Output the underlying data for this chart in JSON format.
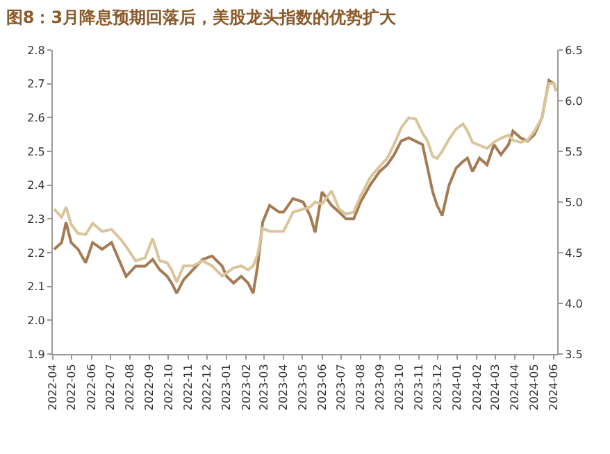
{
  "chart_data": {
    "type": "line",
    "title": "图8：3月降息预期回落后，美股龙头指数的优势扩大",
    "x": [
      "2022-04-03",
      "2022-04-15",
      "2022-04-22",
      "2022-04-30",
      "2022-05-11",
      "2022-05-23",
      "2022-06-03",
      "2022-06-18",
      "2022-07-03",
      "2022-07-19",
      "2022-07-26",
      "2022-08-10",
      "2022-08-25",
      "2022-09-06",
      "2022-09-17",
      "2022-09-29",
      "2022-10-06",
      "2022-10-14",
      "2022-10-25",
      "2022-11-09",
      "2022-11-24",
      "2022-12-09",
      "2022-12-25",
      "2023-01-01",
      "2023-01-12",
      "2023-01-24",
      "2023-02-04",
      "2023-02-12",
      "2023-02-19",
      "2023-02-27",
      "2023-03-10",
      "2023-03-25",
      "2023-04-01",
      "2023-04-16",
      "2023-05-02",
      "2023-05-13",
      "2023-05-21",
      "2023-06-01",
      "2023-06-16",
      "2023-06-28",
      "2023-07-09",
      "2023-07-21",
      "2023-08-01",
      "2023-08-16",
      "2023-08-31",
      "2023-09-12",
      "2023-09-23",
      "2023-10-04",
      "2023-10-16",
      "2023-10-27",
      "2023-11-07",
      "2023-11-15",
      "2023-11-23",
      "2023-11-30",
      "2023-12-08",
      "2023-12-19",
      "2023-12-30",
      "2024-01-10",
      "2024-01-17",
      "2024-01-25",
      "2024-02-05",
      "2024-02-17",
      "2024-02-28",
      "2024-03-10",
      "2024-03-22",
      "2024-03-29",
      "2024-04-10",
      "2024-04-21",
      "2024-05-02",
      "2024-05-14",
      "2024-05-21",
      "2024-05-25",
      "2024-06-02",
      "2024-06-05"
    ],
    "series": [
      {
        "color": "#a47b52",
        "values": [
          2.21,
          2.23,
          2.29,
          2.23,
          2.21,
          2.17,
          2.23,
          2.21,
          2.23,
          2.16,
          2.13,
          2.16,
          2.16,
          2.18,
          2.15,
          2.13,
          2.11,
          2.08,
          2.12,
          2.15,
          2.18,
          2.19,
          2.16,
          2.13,
          2.11,
          2.13,
          2.11,
          2.08,
          2.16,
          2.29,
          2.34,
          2.32,
          2.32,
          2.36,
          2.35,
          2.31,
          2.26,
          2.38,
          2.34,
          2.32,
          2.3,
          2.3,
          2.35,
          2.4,
          2.44,
          2.46,
          2.49,
          2.53,
          2.54,
          2.53,
          2.52,
          2.45,
          2.38,
          2.34,
          2.31,
          2.4,
          2.45,
          2.47,
          2.48,
          2.44,
          2.48,
          2.46,
          2.52,
          2.49,
          2.52,
          2.56,
          2.54,
          2.53,
          2.55,
          2.6,
          2.67,
          2.71,
          2.7,
          2.68
        ]
      },
      {
        "color": "#dac59b",
        "axis": "y2",
        "values": [
          4.93,
          4.85,
          4.95,
          4.78,
          4.69,
          4.68,
          4.79,
          4.71,
          4.73,
          4.62,
          4.56,
          4.42,
          4.45,
          4.64,
          4.42,
          4.4,
          4.33,
          4.21,
          4.37,
          4.37,
          4.42,
          4.37,
          4.27,
          4.3,
          4.35,
          4.37,
          4.33,
          4.37,
          4.48,
          4.74,
          4.71,
          4.71,
          4.71,
          4.9,
          4.93,
          4.95,
          5.0,
          4.98,
          5.11,
          4.93,
          4.88,
          4.9,
          5.06,
          5.24,
          5.35,
          5.43,
          5.57,
          5.73,
          5.83,
          5.82,
          5.68,
          5.6,
          5.45,
          5.43,
          5.5,
          5.62,
          5.72,
          5.77,
          5.7,
          5.59,
          5.56,
          5.53,
          5.59,
          5.63,
          5.66,
          5.61,
          5.59,
          5.61,
          5.7,
          5.83,
          6.07,
          6.17,
          6.17,
          6.09
        ]
      }
    ],
    "xlim": [
      "2022-04-01",
      "2024-06-07"
    ],
    "xticks": [
      "2022-04",
      "2022-05",
      "2022-06",
      "2022-07",
      "2022-08",
      "2022-09",
      "2022-10",
      "2022-11",
      "2022-12",
      "2023-01",
      "2023-02",
      "2023-03",
      "2023-04",
      "2023-05",
      "2023-06",
      "2023-07",
      "2023-08",
      "2023-09",
      "2023-10",
      "2023-11",
      "2023-12",
      "2024-01",
      "2024-02",
      "2024-03",
      "2024-04",
      "2024-05",
      "2024-06"
    ],
    "ylim": [
      1.9,
      2.8
    ],
    "yticks": [
      {
        "value": 1.9,
        "label": "1.9"
      },
      {
        "value": 2.0,
        "label": "2.0"
      },
      {
        "value": 2.1,
        "label": "2.1"
      },
      {
        "value": 2.2,
        "label": "2.2"
      },
      {
        "value": 2.3,
        "label": "2.3"
      },
      {
        "value": 2.4,
        "label": "2.4"
      },
      {
        "value": 2.5,
        "label": "2.5"
      },
      {
        "value": 2.6,
        "label": "2.6"
      },
      {
        "value": 2.7,
        "label": "2.7"
      },
      {
        "value": 2.8,
        "label": "2.8"
      }
    ],
    "y2lim": [
      3.5,
      6.5
    ],
    "y2ticks": [
      {
        "value": 3.5,
        "label": "3.5"
      },
      {
        "value": 4.0,
        "label": "4.0"
      },
      {
        "value": 4.5,
        "label": "4.5"
      },
      {
        "value": 5.0,
        "label": "5.0"
      },
      {
        "value": 5.5,
        "label": "5.5"
      },
      {
        "value": 6.0,
        "label": "6.0"
      },
      {
        "value": 6.5,
        "label": "6.5"
      }
    ],
    "marker": "none",
    "line_style": "solid"
  }
}
